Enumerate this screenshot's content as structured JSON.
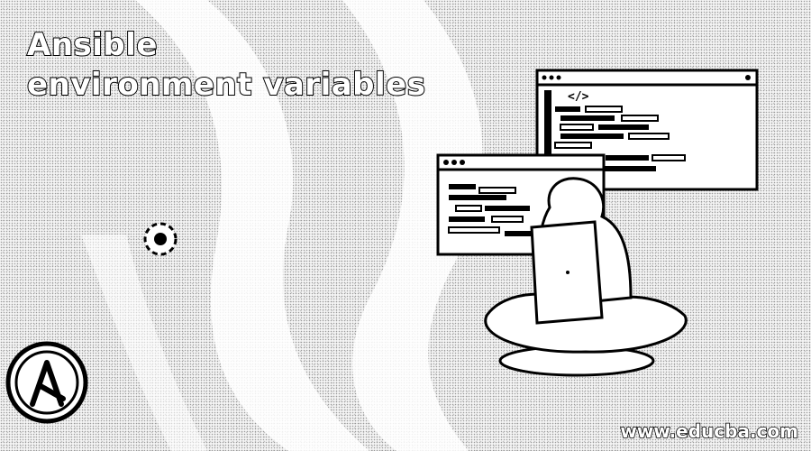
{
  "title": {
    "line1": "Ansible",
    "line2": "environment variables"
  },
  "watermark": "www.educba.com",
  "code_window_icon": "</>",
  "icons": [
    "ansible-logo-icon",
    "gear-icon",
    "code-brackets-icon"
  ],
  "colors": {
    "title_text": "#ffffff",
    "outline": "#000000",
    "background": "#f4f4f4"
  }
}
